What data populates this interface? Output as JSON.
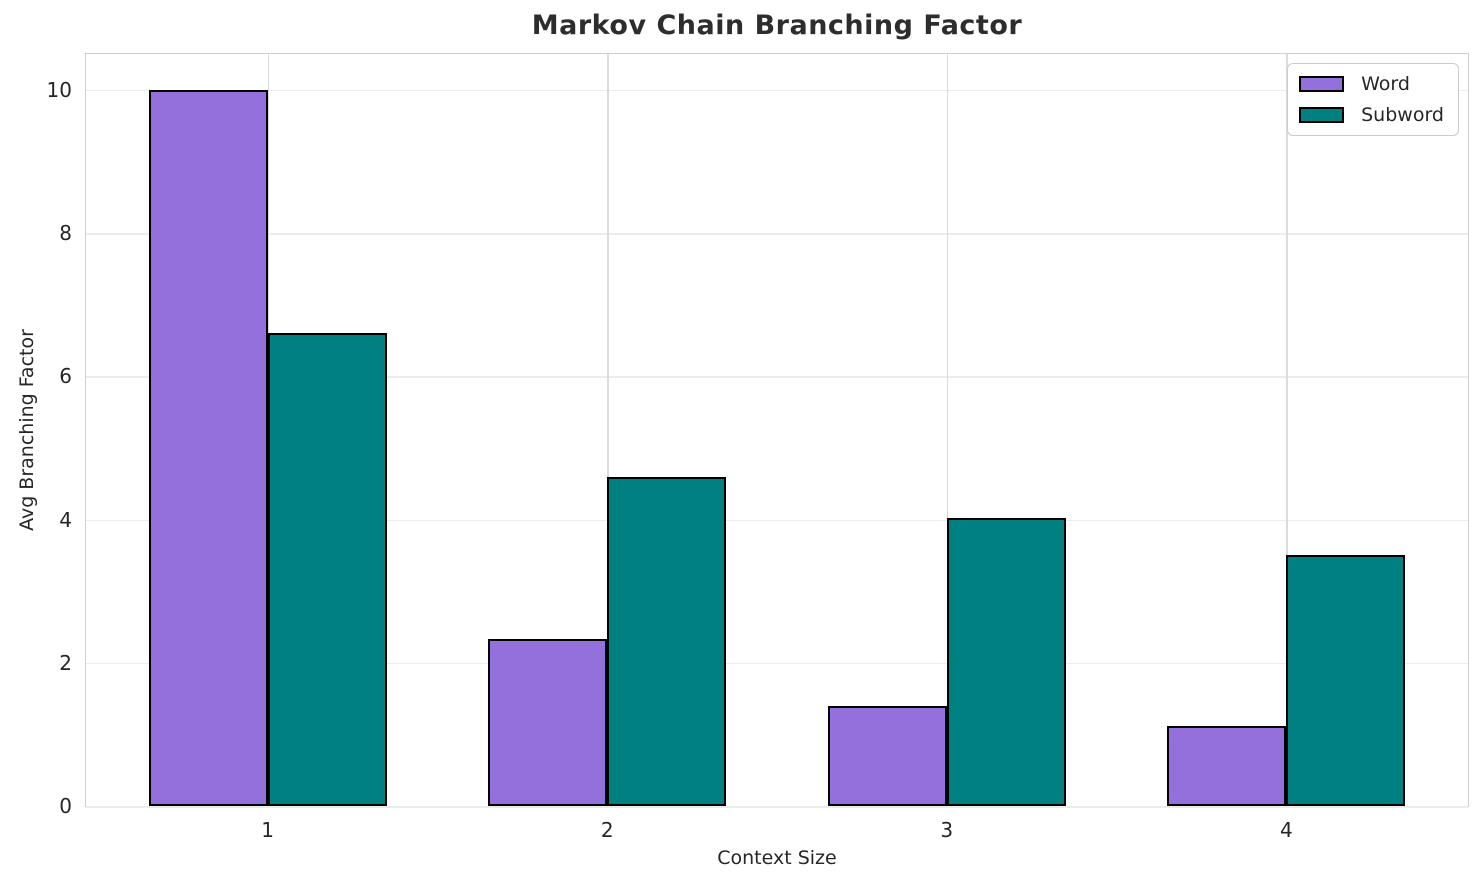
{
  "chart_data": {
    "type": "bar",
    "title": "Markov Chain Branching Factor",
    "xlabel": "Context Size",
    "ylabel": "Avg Branching Factor",
    "categories": [
      "1",
      "2",
      "3",
      "4"
    ],
    "series": [
      {
        "name": "Word",
        "color": "#9370DB",
        "values": [
          10.0,
          2.33,
          1.4,
          1.12
        ]
      },
      {
        "name": "Subword",
        "color": "#008080",
        "values": [
          6.6,
          4.6,
          4.02,
          3.5
        ]
      }
    ],
    "bar_edge_color": "#000000",
    "bar_width": 0.35,
    "xticks": [
      1,
      2,
      3,
      4
    ],
    "yticks": [
      0,
      2,
      4,
      6,
      8,
      10
    ],
    "xlim": [
      0.465,
      4.535
    ],
    "ylim": [
      0,
      10.5
    ],
    "grid": true,
    "legend_position": "upper right"
  }
}
